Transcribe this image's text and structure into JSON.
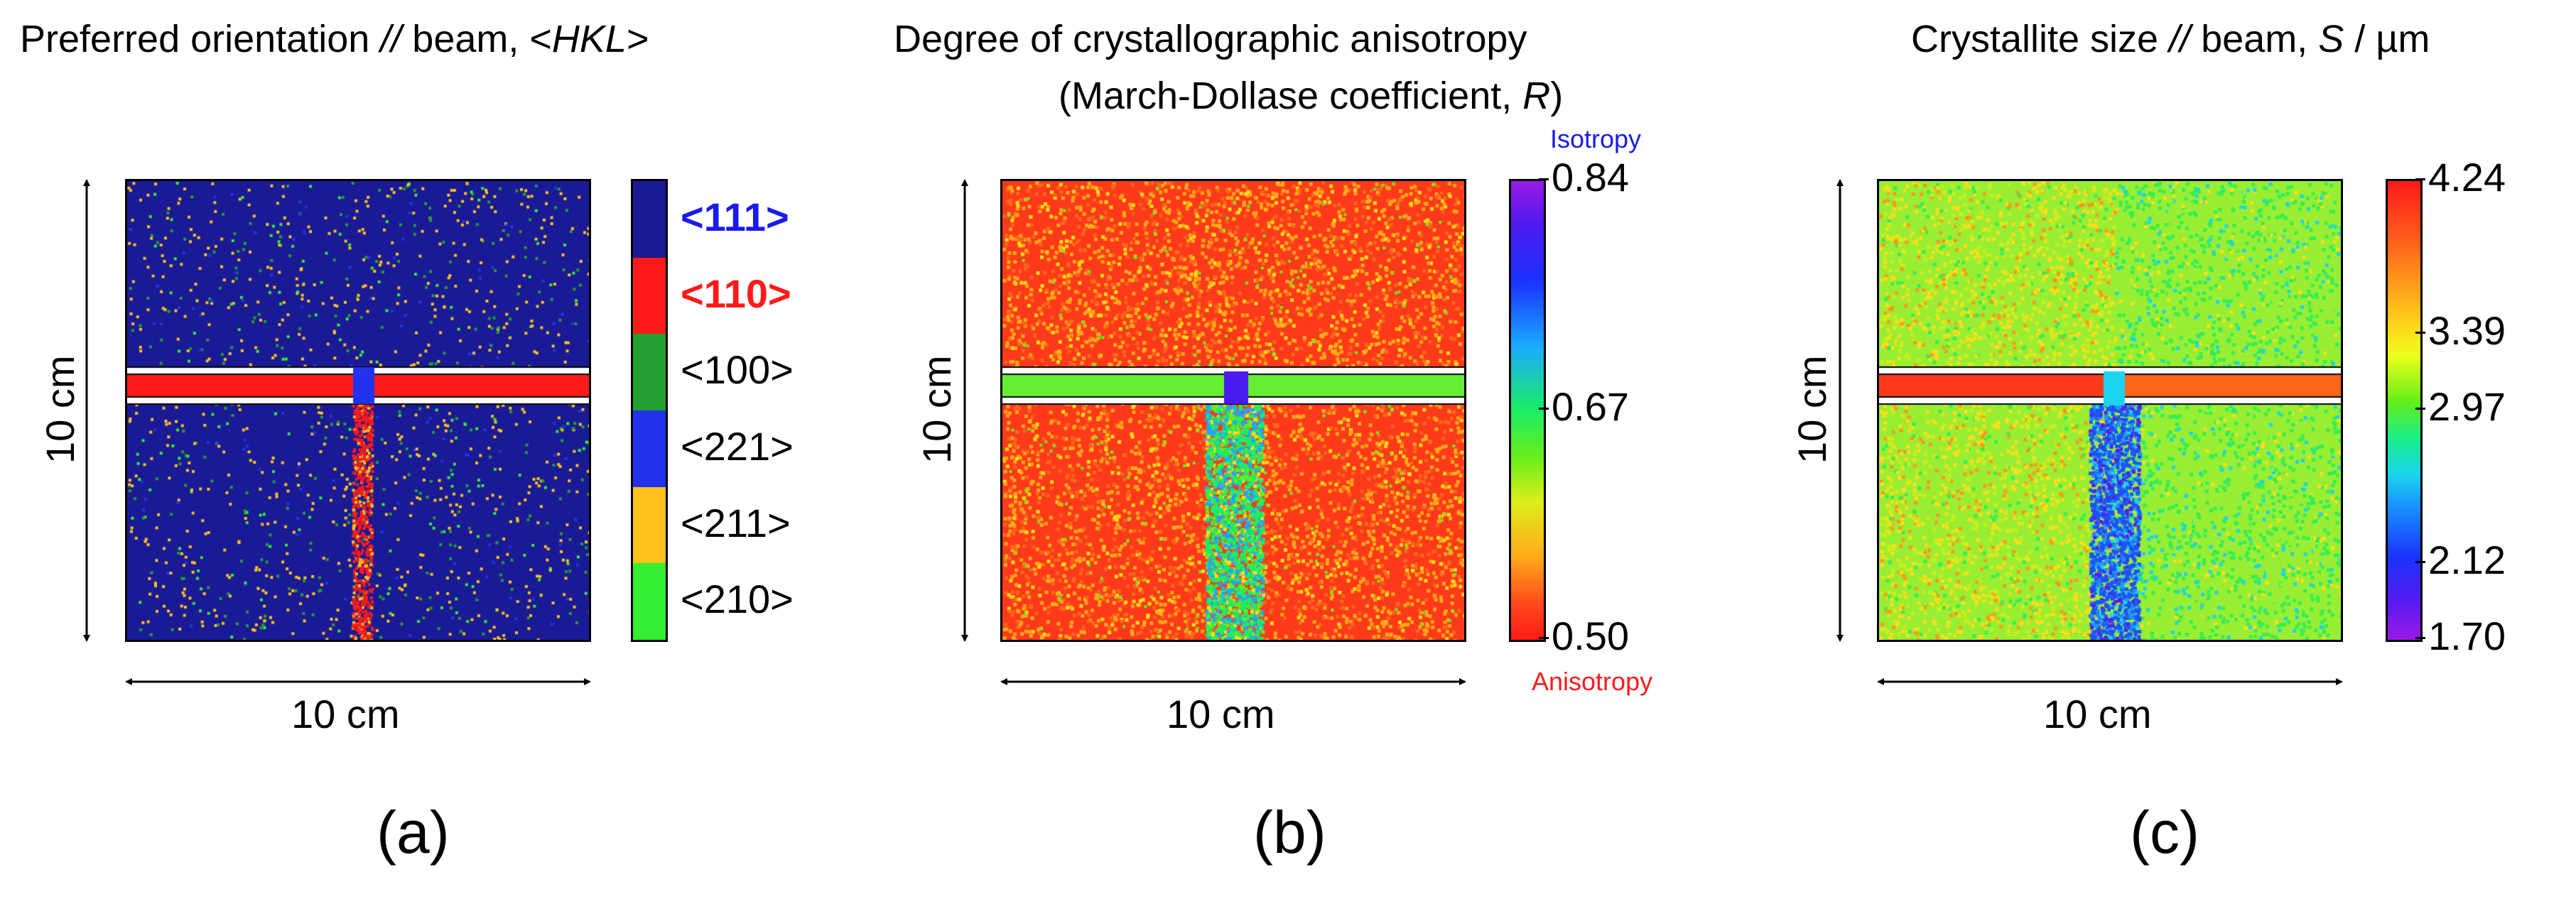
{
  "panels": {
    "a": {
      "title_prefix": "Preferred orientation ",
      "title_italic1": "//",
      "title_mid": " beam, <",
      "title_italic2": "HKL",
      "title_suffix": ">",
      "label": "(a)",
      "x_axis": "10 cm",
      "y_axis": "10 cm",
      "legend": [
        {
          "label": "<111>",
          "color": "#1a1a96",
          "text_color": "#1a1aee",
          "bold": true
        },
        {
          "label": "<110>",
          "color": "#ff1a1a",
          "text_color": "#ff1a1a",
          "bold": true
        },
        {
          "label": "<100>",
          "color": "#22a030",
          "text_color": "#000000",
          "bold": false
        },
        {
          "label": "<221>",
          "color": "#2233ee",
          "text_color": "#000000",
          "bold": false
        },
        {
          "label": "<211>",
          "color": "#ffc21a",
          "text_color": "#000000",
          "bold": false
        },
        {
          "label": "<210>",
          "color": "#33ee33",
          "text_color": "#000000",
          "bold": false
        }
      ]
    },
    "b": {
      "title_line1": "Degree of crystallographic anisotropy",
      "title_line2_prefix": "(March-Dollase coefficient, ",
      "title_line2_italic": "R",
      "title_line2_suffix": ")",
      "label": "(b)",
      "x_axis": "10 cm",
      "y_axis": "10 cm",
      "isotropy_label": "Isotropy",
      "isotropy_color": "#1a1aee",
      "anisotropy_label": "Anisotropy",
      "anisotropy_color": "#ff1a1a",
      "ticks": [
        "0.84",
        "0.67",
        "0.50"
      ]
    },
    "c": {
      "title_prefix": "Crystallite size ",
      "title_italic1": "//",
      "title_mid": " beam, ",
      "title_italic2": "S",
      "title_suffix": " / µm",
      "label": "(c)",
      "x_axis": "10 cm",
      "y_axis": "10 cm",
      "ticks": [
        "4.24",
        "3.39",
        "2.97",
        "2.12",
        "1.70"
      ]
    }
  },
  "chart_data": [
    {
      "type": "heatmap",
      "title": "Preferred orientation // beam, <HKL>",
      "xlabel": "10 cm",
      "ylabel": "10 cm",
      "categories": [
        "<111>",
        "<110>",
        "<100>",
        "<221>",
        "<211>",
        "<210>"
      ],
      "dominant": "<111>",
      "weld_band": "<110>"
    },
    {
      "type": "heatmap",
      "title": "Degree of crystallographic anisotropy (March-Dollase coefficient, R)",
      "xlabel": "10 cm",
      "ylabel": "10 cm",
      "colorbar_range": [
        0.5,
        0.84
      ],
      "colorbar_ticks": [
        0.84,
        0.67,
        0.5
      ]
    },
    {
      "type": "heatmap",
      "title": "Crystallite size // beam, S / µm",
      "xlabel": "10 cm",
      "ylabel": "10 cm",
      "colorbar_range": [
        1.7,
        4.24
      ],
      "colorbar_ticks": [
        4.24,
        3.39,
        2.97,
        2.12,
        1.7
      ]
    }
  ]
}
